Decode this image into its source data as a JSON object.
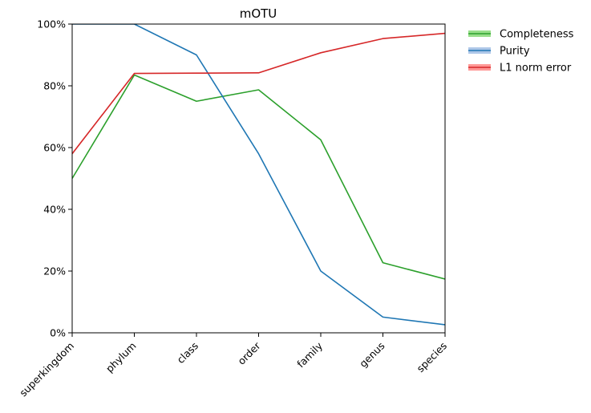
{
  "chart_data": {
    "type": "line",
    "title": "mOTU",
    "xlabel": "",
    "ylabel": "",
    "categories": [
      "superkingdom",
      "phylum",
      "class",
      "order",
      "family",
      "genus",
      "species"
    ],
    "y_ticks": [
      0,
      20,
      40,
      60,
      80,
      100
    ],
    "y_tick_labels": [
      "0%",
      "20%",
      "40%",
      "60%",
      "80%",
      "100%"
    ],
    "ylim": [
      0,
      100
    ],
    "grid": false,
    "legend_position": "outside-top-right",
    "series": [
      {
        "name": "Completeness",
        "color": "#2ca02c",
        "band_color": "#98df8a",
        "values": [
          50,
          83.5,
          75,
          78.7,
          62.5,
          22.7,
          17.4
        ]
      },
      {
        "name": "Purity",
        "color": "#1f77b4",
        "band_color": "#aec7e8",
        "values": [
          100,
          100,
          90,
          58,
          20,
          5.1,
          2.6
        ]
      },
      {
        "name": "L1 norm error",
        "color": "#d62728",
        "band_color": "#ff9896",
        "values": [
          58,
          84,
          84.1,
          84.2,
          90.7,
          95.3,
          97
        ]
      }
    ]
  }
}
